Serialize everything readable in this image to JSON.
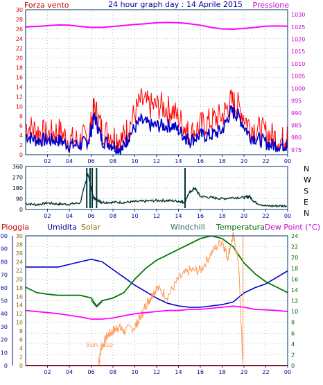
{
  "panel1": {
    "title": "24 hour graph day : 14 Aprile 2015",
    "left_label": "Forza vento",
    "right_label": "Pressione",
    "left_ticks": [
      "0",
      "2",
      "4",
      "6",
      "8",
      "10",
      "12",
      "14",
      "16",
      "18",
      "20",
      "22",
      "24",
      "26",
      "28",
      "30"
    ],
    "right_ticks": [
      "975",
      "980",
      "985",
      "990",
      "995",
      "1000",
      "1005",
      "1010",
      "1015",
      "1020",
      "1025",
      "1030"
    ]
  },
  "panel2": {
    "left_ticks": [
      "0",
      "90",
      "180",
      "270",
      "360"
    ],
    "compass_labels": [
      "N",
      "W",
      "S",
      "E",
      "N"
    ]
  },
  "panel3": {
    "labels": {
      "rain": "Pioggia",
      "humidity": "Umidita",
      "solar": "Solar",
      "windchill": "Windchill",
      "temperature": "Temperatura",
      "dewpoint": "Dew Point (°C)"
    },
    "rain_ticks": [
      "0",
      "10",
      "20",
      "30",
      "40",
      "50",
      "60",
      "70",
      "80",
      "90",
      "100"
    ],
    "solar_ticks": [
      "0",
      "2",
      "4",
      "6",
      "8",
      "10",
      "12",
      "14",
      "16",
      "18",
      "20",
      "22",
      "24",
      "26",
      "28",
      "30"
    ],
    "temp_ticks": [
      "0",
      "2",
      "4",
      "6",
      "8",
      "10",
      "12",
      "14",
      "16",
      "18",
      "20",
      "22",
      "24"
    ],
    "annotation": "Sun Rise"
  },
  "x_ticks": [
    "02",
    "04",
    "06",
    "08",
    "10",
    "12",
    "14",
    "16",
    "18",
    "20",
    "22",
    "00"
  ],
  "colors": {
    "wind": "#ff0000",
    "gust": "#0000cc",
    "pressure": "#ff00ff",
    "direction": "#003333",
    "humidity": "#0000cc",
    "temperature": "#007700",
    "solar": "#ff9955",
    "dewpoint": "#ff00ff",
    "rain": "#ff0000",
    "axis_red": "#cc0000",
    "axis_magenta": "#cc00cc",
    "axis_blue": "#000099",
    "axis_olive": "#886600",
    "axis_green": "#006600"
  },
  "chart_data": [
    {
      "type": "line",
      "title": "24 hour graph day : 14 Aprile 2015",
      "x_unit": "hour",
      "x_range": [
        0,
        24
      ],
      "left_axis": {
        "label": "Forza vento",
        "range": [
          0,
          30
        ]
      },
      "right_axis": {
        "label": "Pressione",
        "range": [
          973,
          1032
        ]
      },
      "series": [
        {
          "name": "Forza vento",
          "axis": "left",
          "style": "spiky",
          "x": [
            0,
            1,
            2,
            3,
            4,
            5,
            5.8,
            6.3,
            7,
            8,
            8.8,
            9.5,
            10.5,
            11.5,
            12.5,
            13.5,
            14.5,
            15,
            16,
            17,
            18,
            18.8,
            19.5,
            20.5,
            21.5,
            22.5,
            23.5,
            24
          ],
          "y": [
            6,
            5,
            4,
            5,
            3,
            3,
            4,
            10,
            5,
            4,
            3,
            6,
            11,
            10,
            10,
            9,
            6,
            4,
            6,
            7,
            8,
            11,
            10,
            6,
            5,
            4,
            3,
            4
          ]
        },
        {
          "name": "",
          "axis": "left",
          "x": [
            0,
            1,
            2,
            3,
            4,
            5,
            5.8,
            6.3,
            7,
            8,
            8.8,
            9.5,
            10.5,
            11.5,
            12.5,
            13.5,
            14.5,
            15,
            16,
            17,
            18,
            18.8,
            19.5,
            20.5,
            21.5,
            22.5,
            23.5,
            24
          ],
          "y": [
            4,
            3,
            3,
            3,
            2,
            2,
            3,
            8,
            3,
            2,
            1,
            4,
            7,
            6,
            6,
            6,
            4,
            3,
            4,
            4,
            5,
            9,
            8,
            4,
            3,
            2,
            2,
            2
          ]
        },
        {
          "name": "Pressione",
          "axis": "right",
          "x": [
            0,
            1,
            2,
            3,
            4,
            5,
            6,
            7,
            8,
            9,
            10,
            11,
            12,
            13,
            14,
            15,
            16,
            17,
            18,
            19,
            20,
            21,
            22,
            23,
            24
          ],
          "y": [
            1025,
            1025.2,
            1025.5,
            1025.8,
            1025.7,
            1025.2,
            1024.8,
            1024.8,
            1025.2,
            1025.6,
            1026,
            1026.3,
            1026.7,
            1026.8,
            1026.7,
            1026.3,
            1025.7,
            1024.8,
            1024.2,
            1024.1,
            1024.4,
            1024.8,
            1025.3,
            1025.4,
            1025.3
          ]
        }
      ]
    },
    {
      "type": "line",
      "x_unit": "hour",
      "x_range": [
        0,
        24
      ],
      "left_axis": {
        "range": [
          0,
          360
        ]
      },
      "series": [
        {
          "name": "",
          "x": [
            0,
            1,
            2,
            3,
            4,
            5,
            5.7,
            6.2,
            6.6,
            7,
            8,
            9,
            10,
            11,
            12,
            13,
            14,
            14.5,
            15,
            15.5,
            16,
            17,
            18,
            19,
            20,
            20.5,
            21,
            22,
            23,
            24
          ],
          "y": [
            50,
            40,
            55,
            45,
            45,
            55,
            300,
            100,
            80,
            60,
            60,
            60,
            65,
            70,
            75,
            75,
            70,
            60,
            140,
            180,
            110,
            100,
            90,
            100,
            100,
            110,
            60,
            30,
            30,
            30
          ]
        }
      ]
    },
    {
      "type": "line",
      "x_unit": "hour",
      "x_range": [
        0,
        24
      ],
      "axes": {
        "Pioggia": {
          "range": [
            0,
            100
          ]
        },
        "Solar": {
          "range": [
            0,
            30
          ]
        },
        "Temperatura": {
          "range": [
            0,
            24
          ]
        }
      },
      "series": [
        {
          "name": "Umidita",
          "axis": "Pioggia",
          "x": [
            0,
            1,
            2,
            3,
            4,
            5,
            6,
            7,
            8,
            9,
            10,
            11,
            12,
            13,
            14,
            15,
            16,
            17,
            18,
            19,
            20,
            21,
            22,
            23,
            24
          ],
          "y": [
            76,
            76,
            76,
            76,
            78,
            80,
            82,
            80,
            74,
            68,
            62,
            57,
            52,
            48,
            46,
            45,
            45,
            46,
            47,
            49,
            56,
            60,
            63,
            68,
            73
          ]
        },
        {
          "name": "Temperatura",
          "axis": "Temperatura",
          "x": [
            0,
            1,
            2,
            3,
            4,
            5,
            6,
            6.5,
            7,
            8,
            9,
            10,
            11,
            12,
            13,
            14,
            15,
            16,
            17,
            18,
            19,
            20,
            21,
            22,
            23,
            24
          ],
          "y": [
            14.5,
            13.5,
            13.2,
            13,
            13,
            13,
            12.5,
            11,
            12,
            12.5,
            13.5,
            16,
            18,
            19.5,
            20.5,
            21.5,
            22.5,
            23.5,
            24,
            23.5,
            22,
            19,
            17,
            15.5,
            14.5,
            13.5
          ]
        },
        {
          "name": "Windchill",
          "axis": "Temperatura",
          "x": [
            6,
            6.5,
            7
          ],
          "y": [
            12,
            10.8,
            11.8
          ]
        },
        {
          "name": "Solar",
          "axis": "Solar",
          "x": [
            6.7,
            6.9,
            7.5,
            8,
            8.5,
            9,
            10,
            10.5,
            11,
            11.5,
            12,
            13,
            14,
            15,
            16,
            17,
            18,
            18.5,
            19,
            19.5,
            19.9
          ],
          "y": [
            0,
            4,
            7,
            8,
            9,
            8,
            9,
            11,
            14,
            16,
            18,
            16,
            20,
            22,
            22,
            26,
            29,
            25,
            30,
            24,
            0
          ]
        },
        {
          "name": "Dew Point (°C)",
          "axis": "Temperatura",
          "x": [
            0,
            1,
            2,
            3,
            4,
            5,
            6,
            7,
            8,
            9,
            10,
            11,
            12,
            13,
            14,
            15,
            16,
            17,
            18,
            19,
            20,
            21,
            22,
            23,
            24
          ],
          "y": [
            10.2,
            10,
            9.8,
            9.6,
            9.3,
            9,
            8.6,
            8.6,
            8.8,
            9.2,
            9.6,
            9.8,
            10,
            10.2,
            10.2,
            10.4,
            10.4,
            10.6,
            10.8,
            11,
            10.8,
            10.4,
            10.3,
            10.2,
            10
          ]
        },
        {
          "name": "Pioggia",
          "axis": "Pioggia",
          "x": [
            0,
            24
          ],
          "y": [
            0,
            0
          ]
        }
      ],
      "annotations": [
        {
          "text": "Sun Rise",
          "x": 6.8
        }
      ]
    }
  ]
}
